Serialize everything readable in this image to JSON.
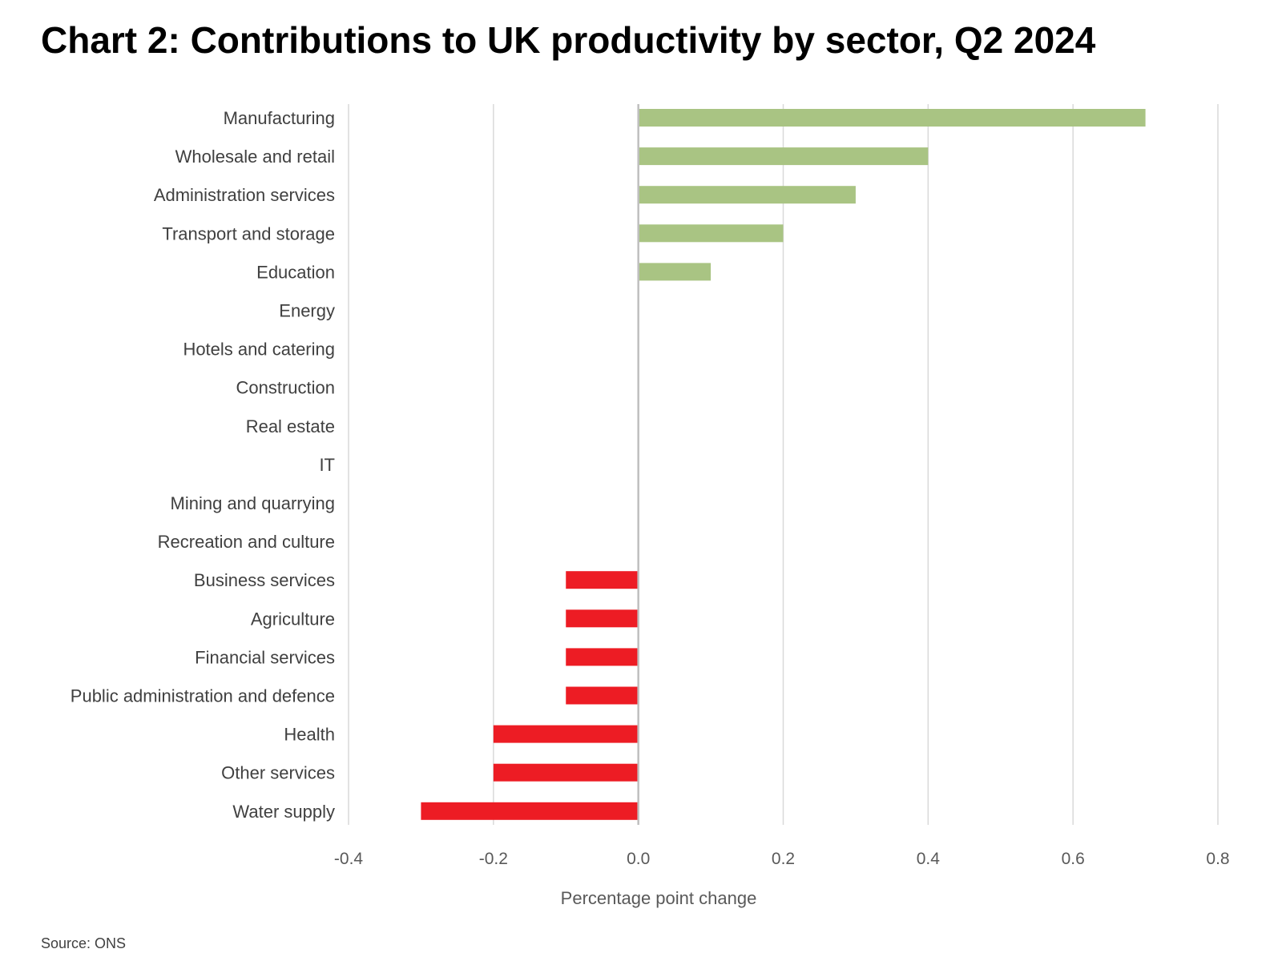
{
  "chart_data": {
    "type": "bar",
    "orientation": "horizontal",
    "title": "Chart 2: Contributions to UK productivity by sector, Q2 2024",
    "xlabel": "Percentage point change",
    "ylabel": "",
    "source": "Source: ONS",
    "xlim": [
      -0.4,
      0.8
    ],
    "xticks": [
      "-0.4",
      "-0.2",
      "0.0",
      "0.2",
      "0.4",
      "0.6",
      "0.8"
    ],
    "grid": "vertical",
    "colors": {
      "positive": "#a9c483",
      "negative": "#ed1c24",
      "grid": "#d9d9d9",
      "zero_line": "#bfbfbf"
    },
    "categories": [
      "Manufacturing",
      "Wholesale and retail",
      "Administration services",
      "Transport and storage",
      "Education",
      "Energy",
      "Hotels and catering",
      "Construction",
      "Real estate",
      "IT",
      "Mining and quarrying",
      "Recreation and culture",
      "Business services",
      "Agriculture",
      "Financial services",
      "Public administration and defence",
      "Health",
      "Other services",
      "Water supply"
    ],
    "values": [
      0.7,
      0.4,
      0.3,
      0.2,
      0.1,
      0,
      0,
      0,
      0,
      0,
      0,
      0,
      -0.1,
      -0.1,
      -0.1,
      -0.1,
      -0.2,
      -0.2,
      -0.3
    ]
  }
}
